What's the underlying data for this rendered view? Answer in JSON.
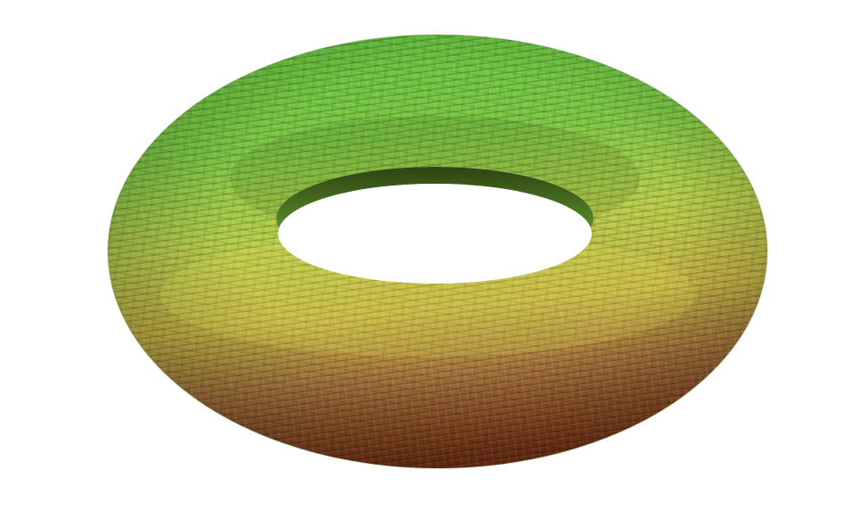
{
  "scene": {
    "subject": "voxelized-torus",
    "background_color": "#ffffff",
    "colors": {
      "top_green": "#5fc63a",
      "mid_green": "#8fd046",
      "yellow_green": "#c8cf45",
      "olive": "#a89a3a",
      "bottom_brown": "#8a3a1a",
      "inner_shadow": "#2f3f14"
    }
  }
}
